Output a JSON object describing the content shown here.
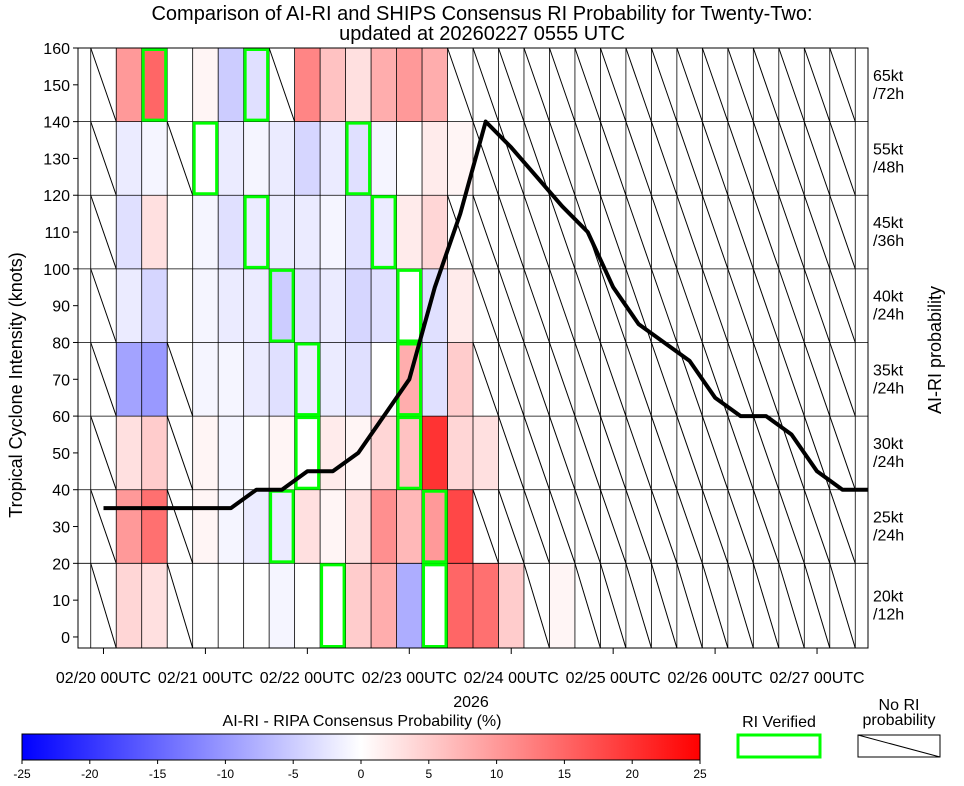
{
  "chart_data": {
    "type": "heatmap",
    "title": "Comparison of AI-RI and SHIPS Consensus RI Probability for Twenty-Two:",
    "subtitle": "updated at 20260227 0555 UTC",
    "ylabel": "Tropical Cyclone Intensity (knots)",
    "right_label": "AI-RI probability",
    "year_label": "2026",
    "ylim": [
      -3,
      160
    ],
    "yticks": [
      0,
      10,
      20,
      30,
      40,
      50,
      60,
      70,
      80,
      90,
      100,
      110,
      120,
      130,
      140,
      150,
      160
    ],
    "xlim": [
      -0.25,
      7.5
    ],
    "xtick_labels": [
      "02/20 00UTC",
      "02/21 00UTC",
      "02/22 00UTC",
      "02/23 00UTC",
      "02/24 00UTC",
      "02/25 00UTC",
      "02/26 00UTC",
      "02/27 00UTC"
    ],
    "n_columns": 30,
    "column_width_days": 0.25,
    "first_column_start_day": -0.125,
    "bands": [
      {
        "label": [
          "65kt",
          "/72h"
        ],
        "ymin": 140,
        "ymax": 160,
        "probs": [
          null,
          10,
          15,
          0,
          1,
          -5,
          -3,
          null,
          12,
          6,
          3,
          8,
          10,
          8,
          null,
          null,
          null,
          null,
          null,
          null,
          null,
          null,
          null,
          null,
          null,
          null,
          null,
          null,
          null,
          null
        ]
      },
      {
        "label": [
          "55kt",
          "/48h"
        ],
        "ymin": 120,
        "ymax": 140,
        "probs": [
          null,
          -2,
          -1,
          null,
          0,
          -2,
          -1,
          -2,
          -4,
          -2,
          -3,
          -1,
          0,
          2,
          1,
          null,
          null,
          null,
          null,
          null,
          null,
          null,
          null,
          null,
          null,
          null,
          null,
          null,
          null,
          null
        ]
      },
      {
        "label": [
          "45kt",
          "/36h"
        ],
        "ymin": 100,
        "ymax": 120,
        "probs": [
          null,
          -3,
          3,
          0,
          -1,
          -3,
          -2,
          -2,
          -2,
          -1,
          -3,
          -2,
          2,
          4,
          null,
          null,
          null,
          null,
          null,
          null,
          null,
          null,
          null,
          null,
          null,
          null,
          null,
          null,
          null,
          null
        ]
      },
      {
        "label": [
          "40kt",
          "/24h"
        ],
        "ymin": 80,
        "ymax": 100,
        "probs": [
          null,
          -2,
          -4,
          0,
          -1,
          -2,
          -2,
          -5,
          -3,
          -2,
          -4,
          -3,
          0,
          -3,
          2,
          null,
          null,
          null,
          null,
          null,
          null,
          null,
          null,
          null,
          null,
          null,
          null,
          null,
          null,
          null
        ]
      },
      {
        "label": [
          "35kt",
          "/24h"
        ],
        "ymin": 60,
        "ymax": 80,
        "probs": [
          null,
          -9,
          -10,
          null,
          -1,
          -1,
          -2,
          -3,
          -2,
          -2,
          -3,
          0,
          8,
          -3,
          5,
          null,
          null,
          null,
          null,
          null,
          null,
          null,
          null,
          null,
          null,
          null,
          null,
          null,
          null,
          null
        ]
      },
      {
        "label": [
          "30kt",
          "/24h"
        ],
        "ymin": 40,
        "ymax": 60,
        "probs": [
          null,
          3,
          5,
          null,
          1,
          -1,
          0,
          1,
          0,
          2,
          1,
          4,
          6,
          20,
          4,
          3,
          null,
          null,
          null,
          null,
          null,
          null,
          null,
          null,
          null,
          null,
          null,
          null,
          null,
          null
        ]
      },
      {
        "label": [
          "25kt",
          "/24h"
        ],
        "ymin": 20,
        "ymax": 40,
        "probs": [
          null,
          10,
          14,
          null,
          1,
          -1,
          -2,
          -2,
          3,
          1,
          3,
          11,
          7,
          10,
          18,
          null,
          null,
          null,
          null,
          null,
          null,
          null,
          null,
          null,
          null,
          null,
          null,
          null,
          null,
          null
        ]
      },
      {
        "label": [
          "20kt",
          "/12h"
        ],
        "ymin": -3,
        "ymax": 20,
        "probs": [
          null,
          4,
          3,
          null,
          0,
          0,
          0,
          -1,
          0,
          0,
          5,
          8,
          -8,
          0,
          15,
          14,
          5,
          null,
          1,
          null,
          null,
          null,
          null,
          null,
          null,
          null,
          null,
          null,
          null,
          null
        ]
      }
    ],
    "verified": [
      {
        "band": "65kt",
        "columns": [
          2,
          6
        ]
      },
      {
        "band": "55kt",
        "columns": [
          4,
          10
        ]
      },
      {
        "band": "45kt",
        "columns": [
          6,
          11
        ]
      },
      {
        "band": "40kt",
        "columns": [
          7,
          12
        ]
      },
      {
        "band": "35kt",
        "columns": [
          8,
          12
        ]
      },
      {
        "band": "30kt",
        "columns": [
          8,
          12
        ]
      },
      {
        "band": "25kt",
        "columns": [
          7,
          13
        ]
      },
      {
        "band": "20kt",
        "columns": [
          9,
          13
        ]
      }
    ],
    "intensity_track": {
      "name": "Tropical Cyclone Intensity",
      "x_days": [
        0,
        0.25,
        0.5,
        0.75,
        1.0,
        1.25,
        1.5,
        1.75,
        2.0,
        2.25,
        2.5,
        2.75,
        3.0,
        3.25,
        3.5,
        3.75,
        4.0,
        4.25,
        4.5,
        4.75,
        5.0,
        5.25,
        5.5,
        5.75,
        6.0,
        6.25,
        6.5,
        6.75,
        7.0,
        7.25,
        7.5
      ],
      "y_knots": [
        35,
        35,
        35,
        35,
        35,
        35,
        40,
        40,
        45,
        45,
        50,
        60,
        70,
        95,
        115,
        140,
        133,
        125,
        117,
        110,
        95,
        85,
        80,
        75,
        65,
        60,
        60,
        55,
        45,
        40,
        40
      ]
    },
    "colorbar": {
      "title": "AI-RI - RIPA Consensus Probability (%)",
      "min": -25,
      "max": 25,
      "ticks": [
        "-25",
        "-20",
        "-15",
        "-10",
        "-5",
        "0",
        "5",
        "10",
        "15",
        "20",
        "25"
      ],
      "colors": {
        "negative": "#0000ff",
        "zero": "#ffffff",
        "positive": "#ff0000"
      }
    },
    "legend": {
      "verified_label": "RI Verified",
      "verified_color": "#00ff00",
      "no_ri_label": [
        "No RI",
        "probability"
      ]
    }
  }
}
